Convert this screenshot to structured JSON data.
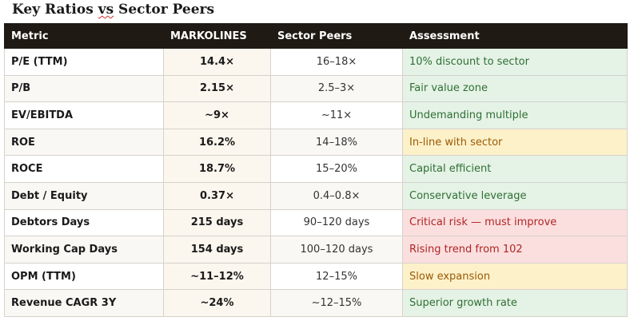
{
  "title": {
    "prefix": "Key Ratios ",
    "vs": "vs",
    "suffix": " Sector Peers"
  },
  "columns": [
    "Metric",
    "MARKOLINES",
    "Sector Peers",
    "Assessment"
  ],
  "rows": [
    {
      "metric": "P/E (TTM)",
      "markolines": "14.4×",
      "sector_peers": "16–18×",
      "assessment": "10% discount to sector",
      "status": "green"
    },
    {
      "metric": "P/B",
      "markolines": "2.15×",
      "sector_peers": "2.5–3×",
      "assessment": "Fair value zone",
      "status": "green"
    },
    {
      "metric": "EV/EBITDA",
      "markolines": "~9×",
      "sector_peers": "~11×",
      "assessment": "Undemanding multiple",
      "status": "green"
    },
    {
      "metric": "ROE",
      "markolines": "16.2%",
      "sector_peers": "14–18%",
      "assessment": "In-line with sector",
      "status": "yellow"
    },
    {
      "metric": "ROCE",
      "markolines": "18.7%",
      "sector_peers": "15–20%",
      "assessment": "Capital efficient",
      "status": "green"
    },
    {
      "metric": "Debt / Equity",
      "markolines": "0.37×",
      "sector_peers": "0.4–0.8×",
      "assessment": "Conservative leverage",
      "status": "green"
    },
    {
      "metric": "Debtors Days",
      "markolines": "215 days",
      "sector_peers": "90–120 days",
      "assessment": "Critical risk — must improve",
      "status": "red"
    },
    {
      "metric": "Working Cap Days",
      "markolines": "154 days",
      "sector_peers": "100–120 days",
      "assessment": "Rising trend from 102",
      "status": "red"
    },
    {
      "metric": "OPM (TTM)",
      "markolines": "~11–12%",
      "sector_peers": "12–15%",
      "assessment": "Slow expansion",
      "status": "yellow"
    },
    {
      "metric": "Revenue CAGR 3Y",
      "markolines": "~24%",
      "sector_peers": "~12–15%",
      "assessment": "Superior growth rate",
      "status": "green"
    }
  ],
  "colors": {
    "header_bg": "#1f1a14",
    "green_bg": "#e5f2e6",
    "green_text": "#2e7033",
    "yellow_bg": "#fdf1c9",
    "yellow_text": "#9a5a06",
    "red_bg": "#fbdfdf",
    "red_text": "#b02424"
  }
}
